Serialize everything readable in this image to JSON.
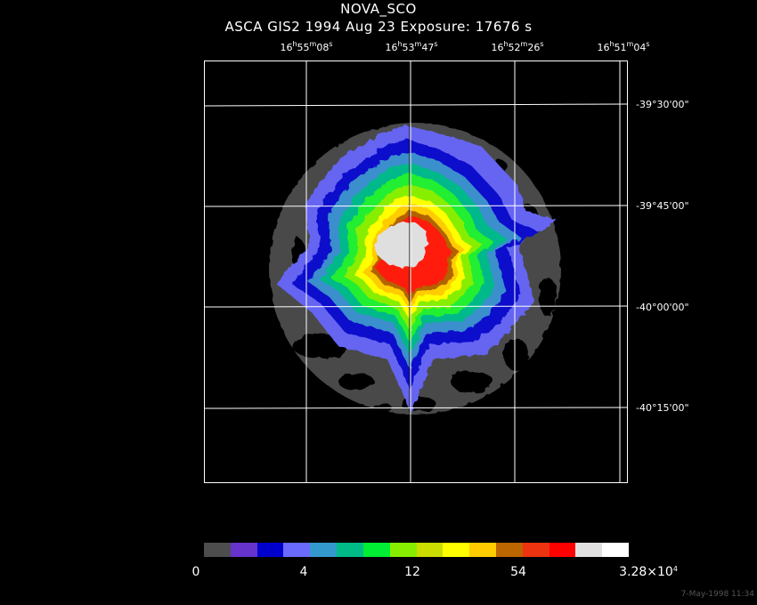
{
  "header": {
    "object": "NOVA_SCO",
    "info": "ASCA GIS2    1994 Aug 23     Exposure: 17676  s"
  },
  "ra_ticks": [
    {
      "h": "16",
      "m": "55",
      "s": "08"
    },
    {
      "h": "16",
      "m": "53",
      "s": "47"
    },
    {
      "h": "16",
      "m": "52",
      "s": "26"
    },
    {
      "h": "16",
      "m": "51",
      "s": "04"
    }
  ],
  "dec_ticks": [
    "-39°30'00\"",
    "-39°45'00\"",
    "-40°00'00\"",
    "-40°15'00\""
  ],
  "colorbar": {
    "colors": [
      "#4d4d4d",
      "#6633cc",
      "#0000cc",
      "#6a6aff",
      "#3399cc",
      "#00bb88",
      "#00ee33",
      "#88ee00",
      "#ccdd00",
      "#ffff00",
      "#ffcc00",
      "#bb6600",
      "#ee3311",
      "#ff0000",
      "#e0e0e0",
      "#ffffff"
    ],
    "labels": [
      "0",
      "4",
      "12",
      "54"
    ],
    "max_label_base": "3.28×10",
    "max_label_exp": "4"
  },
  "footer": "7-May-1998 11:34"
}
